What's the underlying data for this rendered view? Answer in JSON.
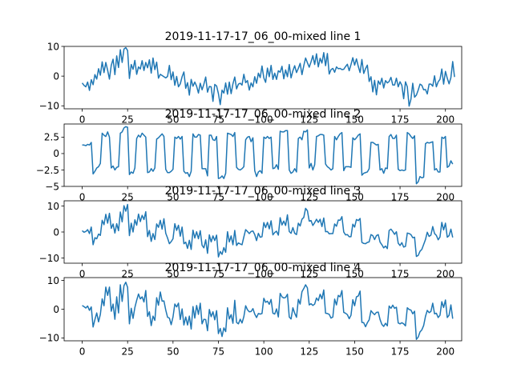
{
  "chart_data": [
    {
      "type": "line",
      "title": "2019-11-17-17_06_00-mixed line 1",
      "xlabel": "",
      "ylabel": "",
      "xlim": [
        -9.95,
        208.95
      ],
      "ylim": [
        -11,
        10
      ],
      "xticks": [
        0,
        25,
        50,
        75,
        100,
        125,
        150,
        175,
        200
      ],
      "yticks": [
        10,
        0,
        -10
      ],
      "grid": false,
      "series": [
        {
          "values": [
            -2.3,
            -3.1,
            -3.6,
            -2.0,
            -4.8,
            -1.2,
            -2.9,
            0.5,
            -1.0,
            2.5,
            0.3,
            4.8,
            1.2,
            4.6,
            2.0,
            -1.0,
            3.6,
            5.7,
            0.5,
            6.8,
            2.9,
            8.9,
            4.6,
            9.1,
            9.6,
            8.6,
            -0.8,
            3.9,
            2.3,
            5.3,
            0.6,
            3.1,
            2.4,
            5.2,
            1.9,
            4.6,
            2.8,
            5.5,
            1.0,
            6.1,
            2.2,
            4.7,
            -0.7,
            0.6,
            0.2,
            -0.2,
            -0.6,
            -0.1,
            3.6,
            -1.2,
            1.4,
            -3.1,
            -0.1,
            -3.6,
            -2.6,
            -0.2,
            1.4,
            -4.1,
            -2.2,
            -6.4,
            -1.1,
            -3.4,
            -2.0,
            -3.4,
            -5.7,
            -2.4,
            -4.6,
            -2.7,
            -0.3,
            -5.4,
            -3.5,
            -3.6,
            -8.5,
            -2.8,
            -3.3,
            -5.9,
            -9.6,
            -4.7,
            -5.7,
            -2.3,
            -6.1,
            -2.0,
            -5.9,
            -2.6,
            -0.3,
            -4.3,
            -2.7,
            -2.4,
            -3.0,
            0.6,
            -2.2,
            -1.5,
            -4.7,
            -2.3,
            -3.6,
            -0.2,
            -2.4,
            1.0,
            -0.5,
            3.4,
            -0.6,
            -2.1,
            2.7,
            -0.2,
            3.6,
            -1.1,
            1.0,
            -1.1,
            1.8,
            1.3,
            3.3,
            -0.9,
            2.1,
            -0.2,
            3.9,
            -0.6,
            1.8,
            3.5,
            1.2,
            2.6,
            4.3,
            0.5,
            3.5,
            6.1,
            4.5,
            3.0,
            4.8,
            6.9,
            3.9,
            7.5,
            3.1,
            6.0,
            4.4,
            7.9,
            3.5,
            7.6,
            0.7,
            2.2,
            2.6,
            1.3,
            3.1,
            2.5,
            2.6,
            2.2,
            2.3,
            3.2,
            4.0,
            1.8,
            3.9,
            6.2,
            3.7,
            5.8,
            3.3,
            1.2,
            5.6,
            0.9,
            2.5,
            3.7,
            -1.8,
            -0.2,
            -5.3,
            -1.4,
            -6.3,
            -1.6,
            -2.8,
            -0.7,
            -4.0,
            -1.5,
            -2.3,
            -1.8,
            -0.4,
            -3.0,
            -3.0,
            -0.7,
            -3.6,
            -1.9,
            -3.1,
            -7.6,
            -1.9,
            -3.6,
            -10.1,
            -7.8,
            -2.4,
            -7.1,
            -6.4,
            -4.7,
            -2.7,
            -3.1,
            -4.6,
            -4.5,
            -6.0,
            -2.7,
            -2.7,
            -3.4,
            0.1,
            -3.6,
            -1.9,
            -1.1,
            2.4,
            -2.7,
            1.6,
            -0.7,
            -2.6,
            -0.5,
            4.9,
            -0.3
          ]
        }
      ]
    },
    {
      "type": "line",
      "title": "2019-11-17-17_06_00-mixed line 2",
      "xlabel": "",
      "ylabel": "",
      "xlim": [
        -9.95,
        208.95
      ],
      "ylim": [
        -5,
        4.5
      ],
      "xticks": [
        0,
        25,
        50,
        75,
        100,
        125,
        150,
        175,
        200
      ],
      "yticks": [
        2.5,
        0.0,
        -2.5,
        -5.0
      ],
      "grid": false,
      "series": [
        {
          "values": [
            1.3,
            1.3,
            1.2,
            1.4,
            1.3,
            1.7,
            -3.1,
            -2.7,
            -2.2,
            -2.0,
            -1.5,
            3.1,
            2.8,
            2.6,
            3.3,
            2.5,
            -2.2,
            -1.9,
            -2.5,
            -2.1,
            -2.0,
            3.1,
            3.3,
            3.9,
            4.1,
            4.0,
            -3.2,
            -2.8,
            -3.0,
            -2.2,
            2.3,
            2.8,
            2.5,
            3.1,
            2.8,
            2.5,
            -2.9,
            -2.8,
            -2.3,
            -2.7,
            -2.2,
            2.2,
            2.4,
            2.7,
            3.0,
            2.6,
            -2.4,
            -2.9,
            -2.9,
            -2.7,
            -2.4,
            2.5,
            2.3,
            2.6,
            2.2,
            2.6,
            -2.7,
            -3.0,
            -2.9,
            -3.5,
            -2.7,
            3.0,
            2.5,
            2.5,
            2.9,
            2.8,
            -2.3,
            -2.3,
            -2.3,
            -3.4,
            2.8,
            2.8,
            2.1,
            2.0,
            2.6,
            -3.8,
            -3.7,
            -3.4,
            -3.8,
            -3.0,
            3.1,
            3.0,
            2.9,
            2.6,
            3.2,
            -2.1,
            -2.4,
            -2.5,
            -2.3,
            -2.0,
            2.1,
            2.5,
            2.6,
            1.8,
            2.4,
            -2.6,
            -3.5,
            -2.8,
            -2.6,
            -3.0,
            2.5,
            2.3,
            2.6,
            2.3,
            2.5,
            -2.3,
            -2.2,
            -1.7,
            -2.4,
            3.4,
            3.3,
            3.3,
            3.5,
            3.5,
            -2.5,
            -3.0,
            -2.8,
            -2.3,
            -2.8,
            2.3,
            2.5,
            2.1,
            3.4,
            3.3,
            3.6,
            -2.2,
            -1.5,
            -2.5,
            -1.7,
            2.6,
            2.7,
            2.9,
            2.9,
            2.8,
            -1.6,
            -2.0,
            -2.2,
            -2.5,
            -2.3,
            2.6,
            2.1,
            2.6,
            3.0,
            3.2,
            -2.6,
            -2.0,
            -2.0,
            -2.0,
            -2.1,
            2.4,
            2.1,
            2.4,
            2.8,
            3.0,
            -3.3,
            -3.0,
            -2.9,
            -2.8,
            -2.3,
            1.7,
            1.7,
            1.5,
            1.3,
            1.4,
            -2.5,
            -2.3,
            -3.0,
            -2.2,
            -2.3,
            2.6,
            2.9,
            2.3,
            2.3,
            2.8,
            -2.4,
            -2.6,
            -2.5,
            -2.6,
            -2.5,
            3.2,
            3.0,
            2.6,
            2.3,
            2.7,
            -4.6,
            -4.3,
            -3.5,
            -3.7,
            -3.6,
            1.5,
            1.7,
            1.6,
            1.7,
            1.8,
            -2.5,
            -2.3,
            -2.8,
            -2.8,
            2.5,
            2.3,
            2.6,
            -2.1,
            -1.9,
            -1.1,
            -1.6
          ]
        }
      ]
    },
    {
      "type": "line",
      "title": "2019-11-17-17_06_00-mixed line 3",
      "xlabel": "",
      "ylabel": "",
      "xlim": [
        -9.95,
        208.95
      ],
      "ylim": [
        -12,
        12
      ],
      "xticks": [
        0,
        25,
        50,
        75,
        100,
        125,
        150,
        175,
        200
      ],
      "yticks": [
        10,
        0,
        -10
      ],
      "grid": false,
      "series": [
        {
          "values": [
            0.5,
            -0.1,
            0.2,
            0.9,
            -0.6,
            1.9,
            -4.9,
            -2.2,
            -2.6,
            -0.8,
            -1.3,
            4.5,
            2.8,
            6.8,
            3.4,
            7.2,
            1.4,
            3.1,
            -0.4,
            3.2,
            0.5,
            7.7,
            3.9,
            10.1,
            8.0,
            10.6,
            -1.4,
            3.4,
            0.0,
            4.7,
            2.6,
            6.9,
            4.0,
            6.4,
            4.8,
            7.8,
            -1.8,
            0.6,
            -3.6,
            -0.6,
            -2.9,
            3.1,
            1.8,
            4.5,
            1.1,
            5.1,
            -0.5,
            -2.3,
            -4.5,
            -3.7,
            -2.6,
            3.2,
            0.6,
            2.6,
            -1.6,
            1.9,
            -4.5,
            -3.9,
            -6.3,
            -3.2,
            -6.7,
            0.7,
            -2.3,
            0.1,
            -2.6,
            0.5,
            -5.1,
            -6.1,
            -3.0,
            -8.2,
            -1.1,
            -3.8,
            -1.5,
            -3.3,
            -1.2,
            -9.6,
            -7.5,
            -8.6,
            -6.0,
            -7.8,
            0.1,
            -3.8,
            -1.5,
            -4.9,
            0.6,
            -5.2,
            -4.2,
            -4.6,
            -4.9,
            -1.9,
            0.9,
            0.2,
            -0.6,
            0.2,
            0.4,
            -1.0,
            -3.3,
            -0.5,
            -2.0,
            -1.8,
            3.6,
            1.7,
            3.7,
            1.2,
            4.3,
            -1.1,
            -0.2,
            0.3,
            -1.2,
            5.5,
            2.7,
            4.2,
            2.5,
            6.6,
            0.2,
            -0.5,
            1.7,
            -0.5,
            -1.0,
            3.4,
            2.3,
            4.9,
            5.6,
            9.1,
            8.2,
            4.2,
            4.4,
            2.5,
            3.6,
            4.9,
            3.7,
            4.9,
            2.1,
            5.4,
            0.1,
            0.2,
            -0.7,
            -0.6,
            -0.6,
            3.1,
            2.2,
            4.6,
            4.5,
            5.9,
            0.0,
            -1.1,
            -1.0,
            -1.8,
            -1.8,
            3.0,
            1.9,
            4.8,
            4.4,
            5.2,
            -4.0,
            -4.4,
            -4.5,
            -4.0,
            -3.8,
            -1.0,
            -1.4,
            -2.9,
            -1.4,
            -1.0,
            -3.9,
            -4.9,
            -6.1,
            -5.4,
            -6.4,
            0.6,
            1.1,
            0.2,
            -0.9,
            0.1,
            -4.3,
            -5.2,
            -4.1,
            -5.8,
            -5.5,
            -0.4,
            -0.6,
            -1.0,
            -2.2,
            -2.0,
            -9.4,
            -9.0,
            -7.4,
            -6.7,
            -4.8,
            -2.9,
            -0.1,
            -1.7,
            -1.2,
            2.1,
            -0.6,
            -1.3,
            -3.0,
            -1.9,
            3.7,
            0.8,
            3.4,
            -2.0,
            -1.4,
            1.1,
            -2.1
          ]
        }
      ]
    },
    {
      "type": "line",
      "title": "2019-11-17-17_06_00-mixed line 4",
      "xlabel": "",
      "ylabel": "",
      "xlim": [
        -9.95,
        208.95
      ],
      "ylim": [
        -11,
        11
      ],
      "xticks": [
        0,
        25,
        50,
        75,
        100,
        125,
        150,
        175,
        200
      ],
      "yticks": [
        10,
        0,
        -10
      ],
      "grid": false,
      "series": [
        {
          "values": [
            1.3,
            0.9,
            0.4,
            1.1,
            -0.4,
            0.8,
            -6.2,
            -3.6,
            -1.3,
            -4.4,
            -1.8,
            3.6,
            1.2,
            7.7,
            4.8,
            7.7,
            -0.7,
            1.8,
            -3.5,
            4.3,
            -1.3,
            8.5,
            2.7,
            8.2,
            9.4,
            7.6,
            -5.1,
            0.3,
            -3.2,
            0.6,
            3.1,
            5.3,
            3.6,
            4.3,
            2.5,
            6.5,
            -2.5,
            -0.9,
            -5.7,
            -2.4,
            -3.9,
            4.0,
            1.4,
            6.0,
            2.8,
            2.9,
            -0.3,
            -2.8,
            -3.1,
            -5.4,
            -2.7,
            1.8,
            0.8,
            2.1,
            -3.6,
            0.1,
            -5.5,
            -2.7,
            -5.5,
            -2.4,
            -6.9,
            0.9,
            -3.1,
            1.3,
            -1.8,
            2.1,
            -5.1,
            -3.5,
            -3.6,
            -7.5,
            -0.1,
            -2.6,
            -0.9,
            -3.7,
            -0.5,
            -8.5,
            -6.7,
            -9.5,
            -6.5,
            -7.8,
            0.5,
            -3.4,
            -1.9,
            -4.9,
            3.1,
            -4.6,
            -5.1,
            -3.5,
            -4.8,
            -2.6,
            1.2,
            -0.2,
            -0.9,
            -0.8,
            0.2,
            -1.7,
            -2.9,
            -1.5,
            -1.7,
            -1.5,
            3.8,
            2.4,
            2.8,
            1.7,
            3.4,
            -1.4,
            -1.7,
            0.1,
            -2.7,
            5.5,
            4.3,
            3.9,
            4.1,
            5.2,
            -2.7,
            -3.4,
            0.5,
            -1.4,
            -2.8,
            3.4,
            1.8,
            6.1,
            7.2,
            8.5,
            7.4,
            1.5,
            1.9,
            1.3,
            1.8,
            3.9,
            3.0,
            5.2,
            3.6,
            6.7,
            -1.4,
            -1.5,
            -1.8,
            -3.1,
            -2.7,
            3.5,
            1.5,
            4.8,
            4.3,
            6.5,
            -1.1,
            -1.4,
            -1.9,
            -3.3,
            -2.1,
            3.3,
            1.2,
            4.3,
            4.6,
            6.3,
            -4.6,
            -4.7,
            -6.1,
            -4.7,
            -3.7,
            -0.5,
            -1.3,
            -1.9,
            -1.1,
            -1.0,
            -3.6,
            -5.3,
            -6.0,
            -4.9,
            -5.8,
            1.1,
            0.3,
            1.4,
            0.3,
            0.7,
            -4.8,
            -5.1,
            -4.7,
            -5.1,
            -5.8,
            0.5,
            -0.1,
            -0.3,
            -1.6,
            -0.7,
            -10.5,
            -9.7,
            -7.9,
            -7.2,
            -5.7,
            -2.5,
            -0.4,
            -1.2,
            -0.8,
            2.1,
            -1.6,
            -1.4,
            -2.9,
            -2.1,
            2.6,
            0.6,
            3.2,
            -2.9,
            -2.1,
            1.5,
            -3.3
          ]
        }
      ]
    }
  ]
}
